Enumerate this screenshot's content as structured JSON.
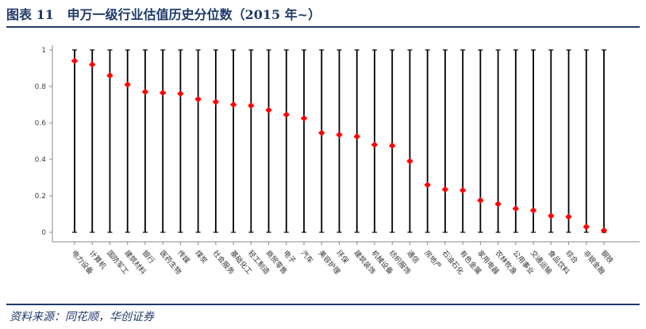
{
  "header": {
    "figure_no": "图表 11",
    "title": "申万一级行业估值历史分位数（2015 年~）"
  },
  "footer": {
    "source": "资料来源：同花顺，华创证券"
  },
  "colors": {
    "title": "#1f3a6b",
    "marker": "#ff0000",
    "range_line": "#000000"
  },
  "chart_data": {
    "type": "scatter",
    "title": "",
    "xlabel": "",
    "ylabel": "",
    "ylim": [
      0,
      1
    ],
    "yticks": [
      "0",
      "0.2",
      "0.4",
      "0.6",
      "0.8",
      "1"
    ],
    "grid": false,
    "legend": "none",
    "range": [
      0,
      1
    ],
    "categories": [
      "电力设备",
      "计算机",
      "国防军工",
      "建筑材料",
      "银行",
      "医药生物",
      "传媒",
      "煤炭",
      "社会服务",
      "基础化工",
      "轻工制造",
      "商贸零售",
      "电子",
      "汽车",
      "美容护理",
      "环保",
      "建筑装饰",
      "机械设备",
      "纺织服饰",
      "通信",
      "房地产",
      "石油石化",
      "有色金属",
      "家用电器",
      "农林牧渔",
      "公用事业",
      "交通运输",
      "食品饮料",
      "综合",
      "非银金融",
      "钢铁"
    ],
    "values": [
      0.94,
      0.92,
      0.86,
      0.81,
      0.77,
      0.765,
      0.76,
      0.73,
      0.715,
      0.7,
      0.695,
      0.67,
      0.645,
      0.625,
      0.545,
      0.535,
      0.525,
      0.48,
      0.475,
      0.39,
      0.26,
      0.235,
      0.23,
      0.175,
      0.155,
      0.13,
      0.12,
      0.09,
      0.085,
      0.03,
      0.01
    ]
  }
}
